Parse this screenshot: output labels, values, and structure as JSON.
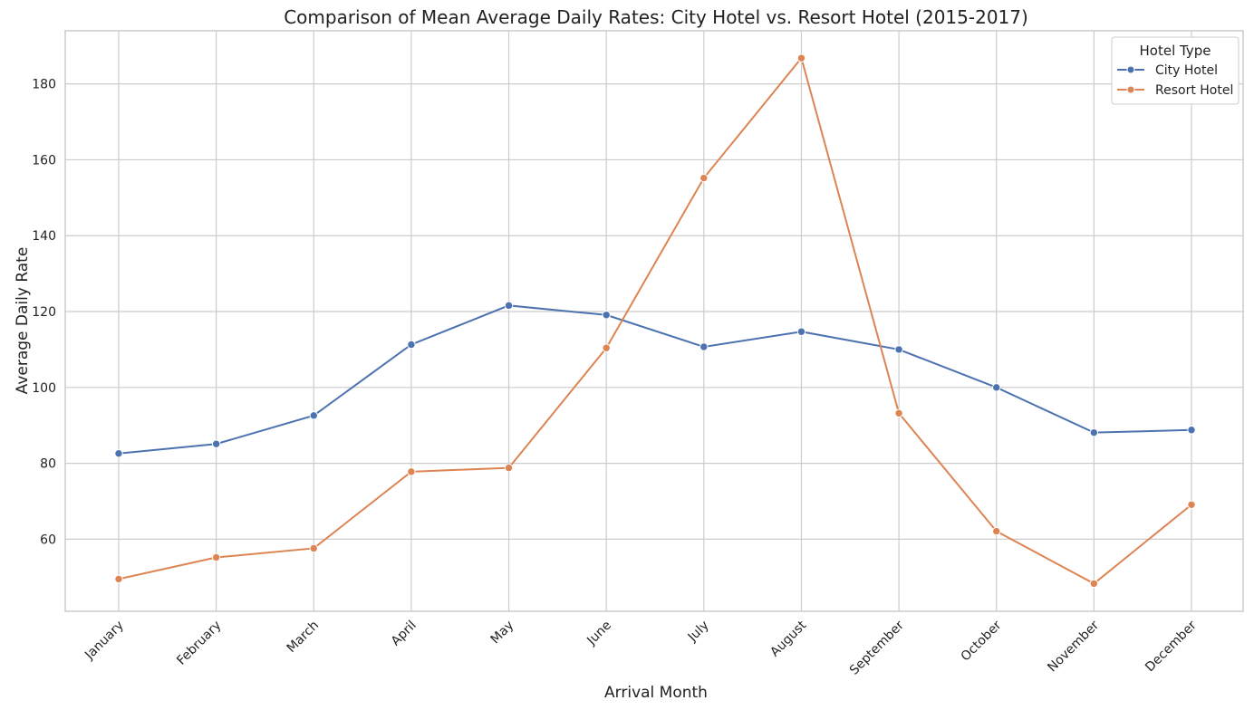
{
  "chart_data": {
    "type": "line",
    "title": "Comparison of Mean Average Daily Rates: City Hotel vs. Resort Hotel (2015-2017)",
    "xlabel": "Arrival Month",
    "ylabel": "Average Daily Rate",
    "categories": [
      "January",
      "February",
      "March",
      "April",
      "May",
      "June",
      "July",
      "August",
      "September",
      "October",
      "November",
      "December"
    ],
    "ylim": [
      41,
      194
    ],
    "yticks": [
      60,
      80,
      100,
      120,
      140,
      160,
      180
    ],
    "grid": true,
    "legend": {
      "title": "Hotel Type",
      "placement": "top-right"
    },
    "series": [
      {
        "name": "City Hotel",
        "color": "#4c72b0",
        "values": [
          82.6,
          85.1,
          92.6,
          111.3,
          121.6,
          119.1,
          110.7,
          114.7,
          110.0,
          100.0,
          88.1,
          88.8
        ]
      },
      {
        "name": "Resort Hotel",
        "color": "#dd8452",
        "values": [
          49.5,
          55.2,
          57.6,
          77.8,
          78.8,
          110.4,
          155.2,
          186.8,
          93.2,
          62.1,
          48.3,
          69.1
        ]
      }
    ]
  }
}
